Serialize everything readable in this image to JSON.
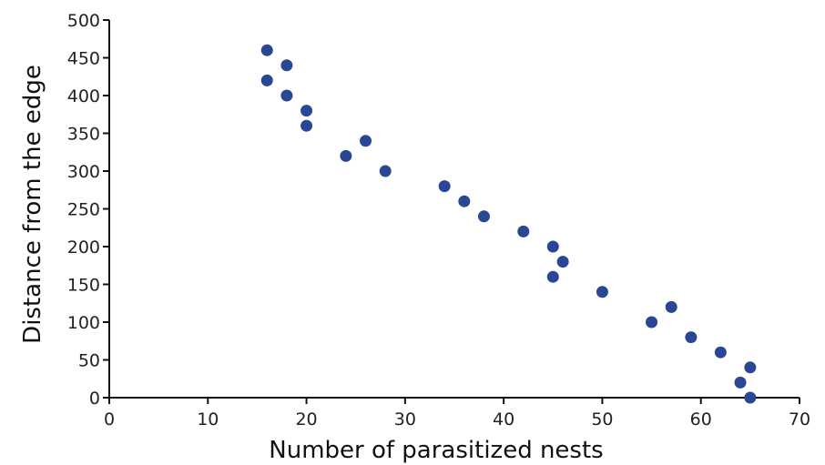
{
  "chart_data": {
    "type": "scatter",
    "xlabel": "Number of parasitized nests",
    "ylabel": "Distance from the edge",
    "xlim": [
      0,
      70
    ],
    "ylim": [
      0,
      500
    ],
    "xticks": [
      0,
      10,
      20,
      30,
      40,
      50,
      60,
      70
    ],
    "yticks": [
      0,
      50,
      100,
      150,
      200,
      250,
      300,
      350,
      400,
      450,
      500
    ],
    "xtick_labels": [
      "0",
      "10",
      "20",
      "30",
      "40",
      "50",
      "60",
      "70"
    ],
    "ytick_labels": [
      "0",
      "50",
      "100",
      "150",
      "200",
      "250",
      "300",
      "350",
      "400",
      "450",
      "500"
    ],
    "grid": false,
    "point_color": "#2a4796",
    "series": [
      {
        "points": [
          {
            "x": 16,
            "y": 460
          },
          {
            "x": 16,
            "y": 420
          },
          {
            "x": 18,
            "y": 440
          },
          {
            "x": 18,
            "y": 400
          },
          {
            "x": 20,
            "y": 380
          },
          {
            "x": 20,
            "y": 360
          },
          {
            "x": 24,
            "y": 320
          },
          {
            "x": 26,
            "y": 340
          },
          {
            "x": 28,
            "y": 300
          },
          {
            "x": 34,
            "y": 280
          },
          {
            "x": 36,
            "y": 260
          },
          {
            "x": 38,
            "y": 240
          },
          {
            "x": 42,
            "y": 220
          },
          {
            "x": 45,
            "y": 200
          },
          {
            "x": 46,
            "y": 180
          },
          {
            "x": 45,
            "y": 160
          },
          {
            "x": 50,
            "y": 140
          },
          {
            "x": 55,
            "y": 100
          },
          {
            "x": 57,
            "y": 120
          },
          {
            "x": 59,
            "y": 80
          },
          {
            "x": 62,
            "y": 60
          },
          {
            "x": 64,
            "y": 20
          },
          {
            "x": 65,
            "y": 40
          },
          {
            "x": 65,
            "y": 0
          }
        ]
      }
    ]
  }
}
